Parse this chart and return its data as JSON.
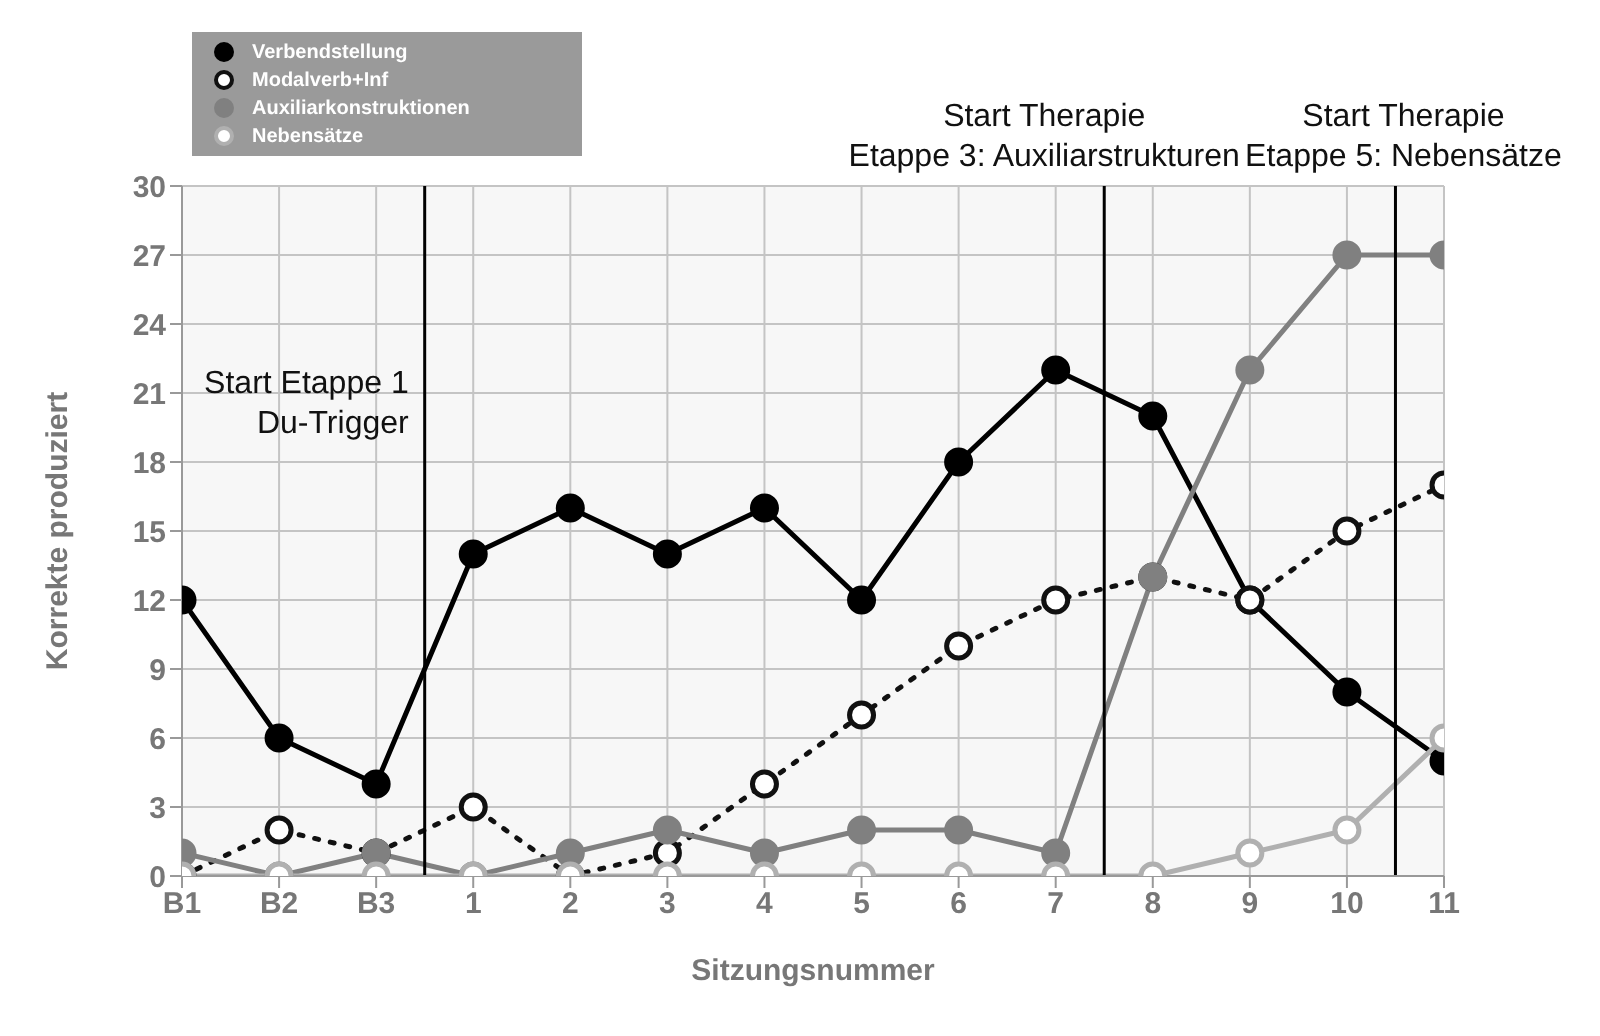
{
  "chart_data": {
    "type": "line",
    "xlabel": "Sitzungsnummer",
    "ylabel": "Korrekte produziert",
    "x": [
      -2,
      -1,
      0,
      1,
      2,
      3,
      4,
      5,
      6,
      7,
      8,
      9,
      10,
      11
    ],
    "xlim": [
      -2,
      11
    ],
    "xticks": [
      {
        "value": -2,
        "label": "B1"
      },
      {
        "value": -1,
        "label": "B2"
      },
      {
        "value": 0,
        "label": "B3"
      },
      1,
      2,
      3,
      4,
      5,
      6,
      7,
      8,
      9,
      10,
      11
    ],
    "ylim": [
      0,
      30
    ],
    "yticks": [
      0,
      3,
      6,
      9,
      12,
      15,
      18,
      21,
      24,
      27,
      30
    ],
    "series": [
      {
        "name": "Verbendstellung",
        "color": "#000000",
        "line_style": "solid",
        "values": [
          12,
          6,
          4,
          14,
          16,
          14,
          16,
          12,
          18,
          22,
          20,
          12,
          8,
          5
        ]
      },
      {
        "name": "Modalverb+Inf",
        "color": "#111111",
        "line_style": "dotted",
        "values": [
          0,
          2,
          1,
          3,
          0,
          1,
          4,
          7,
          10,
          12,
          13,
          12,
          15,
          17
        ]
      },
      {
        "name": "Auxiliarkonstruktionen",
        "color": "#808080",
        "line_style": "solid",
        "values": [
          1,
          0,
          1,
          0,
          1,
          2,
          1,
          2,
          2,
          1,
          13,
          22,
          27,
          27
        ]
      },
      {
        "name": "Nebensätze",
        "color": "#b0b0b0",
        "line_style": "solid",
        "values": [
          0,
          0,
          0,
          0,
          0,
          0,
          0,
          0,
          0,
          0,
          0,
          1,
          2,
          6
        ]
      }
    ],
    "ref_lines": [
      {
        "axis": "x",
        "value": 0.5,
        "label": "Start Etappe 1\nDu-Trigger",
        "color": "#000000"
      },
      {
        "axis": "x",
        "value": 7.5,
        "label": "Start Therapie\nEtappe 3: Auxiliarstrukturen",
        "color": "#000000"
      },
      {
        "axis": "x",
        "value": 10.5,
        "label": "Start Therapie\nEtappe 5: Nebensätze",
        "color": "#000000"
      }
    ],
    "marker": "circle",
    "grid": true,
    "legend": "top left"
  }
}
